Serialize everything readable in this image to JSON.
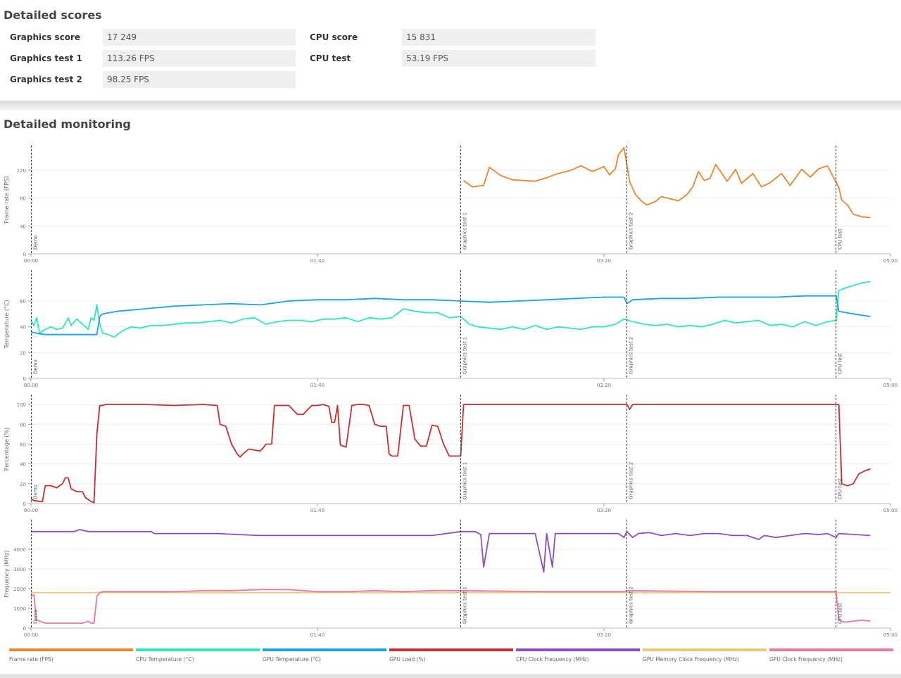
{
  "scores": {
    "title": "Detailed scores",
    "left": [
      {
        "label": "Graphics score",
        "value": "17 249"
      },
      {
        "label": "Graphics test 1",
        "value": "113.26 FPS"
      },
      {
        "label": "Graphics test 2",
        "value": "98.25 FPS"
      }
    ],
    "right": [
      {
        "label": "CPU score",
        "value": "15 831"
      },
      {
        "label": "CPU test",
        "value": "53.19 FPS"
      }
    ]
  },
  "monitoring": {
    "title": "Detailed monitoring"
  },
  "chart_data": [
    {
      "type": "line",
      "ylabel": "Frame rate (FPS)",
      "ylim": [
        0,
        155
      ],
      "yticks": [
        0,
        40,
        80,
        120
      ],
      "xlim": [
        "00:00",
        "05:00"
      ],
      "xticks": [
        "00:00",
        "01:40",
        "03:20",
        "05:00"
      ],
      "grid": true,
      "markers": [
        {
          "time": "00:00",
          "label": "Demo"
        },
        {
          "time": "02:30",
          "label": "Graphics test 1"
        },
        {
          "time": "03:28",
          "label": "Graphics test 2"
        },
        {
          "time": "04:41",
          "label": "CPU test"
        }
      ],
      "series": [
        {
          "name": "Frame rate (FPS)",
          "color": "#e8852e",
          "x": [
            "02:31",
            "02:34",
            "02:38",
            "02:40",
            "02:44",
            "02:48",
            "02:52",
            "02:56",
            "03:00",
            "03:04",
            "03:08",
            "03:12",
            "03:16",
            "03:20",
            "03:22",
            "03:24",
            "03:25",
            "03:27",
            "03:29",
            "03:31",
            "03:33",
            "03:35",
            "03:38",
            "03:40",
            "03:43",
            "03:46",
            "03:49",
            "03:51",
            "03:53",
            "03:55",
            "03:57",
            "03:59",
            "04:01",
            "04:03",
            "04:06",
            "04:08",
            "04:12",
            "04:15",
            "04:18",
            "04:22",
            "04:25",
            "04:29",
            "04:32",
            "04:35",
            "04:38",
            "04:42",
            "04:43",
            "04:45",
            "04:47",
            "04:50",
            "04:53"
          ],
          "values": [
            105,
            96,
            98,
            124,
            112,
            106,
            105,
            104,
            109,
            115,
            119,
            126,
            118,
            125,
            113,
            122,
            142,
            152,
            103,
            85,
            76,
            70,
            75,
            82,
            79,
            76,
            85,
            96,
            118,
            105,
            108,
            128,
            116,
            104,
            121,
            101,
            115,
            96,
            102,
            115,
            98,
            121,
            110,
            122,
            126,
            95,
            77,
            70,
            57,
            53,
            52
          ]
        }
      ]
    },
    {
      "type": "line",
      "ylabel": "Temperature (°C)",
      "ylim": [
        0,
        84
      ],
      "yticks": [
        0,
        20,
        40,
        60
      ],
      "xlim": [
        "00:00",
        "05:00"
      ],
      "xticks": [
        "00:00",
        "01:40",
        "03:20",
        "05:00"
      ],
      "grid": true,
      "markers": [
        {
          "time": "00:00",
          "label": "Demo"
        },
        {
          "time": "02:30",
          "label": "Graphics test 1"
        },
        {
          "time": "03:28",
          "label": "Graphics test 2"
        },
        {
          "time": "04:41",
          "label": "CPU test"
        }
      ],
      "series": [
        {
          "name": "CPU Temperature (°C)",
          "color": "#2ee8b8",
          "x": [
            "00:00",
            "00:01",
            "00:02",
            "00:03",
            "00:05",
            "00:07",
            "00:09",
            "00:11",
            "00:13",
            "00:14",
            "00:16",
            "00:18",
            "00:20",
            "00:21",
            "00:22",
            "00:23",
            "00:24",
            "00:25",
            "00:27",
            "00:29",
            "00:32",
            "00:35",
            "00:38",
            "00:42",
            "00:46",
            "00:50",
            "00:54",
            "00:58",
            "01:02",
            "01:06",
            "01:10",
            "01:14",
            "01:18",
            "01:22",
            "01:26",
            "01:30",
            "01:34",
            "01:38",
            "01:42",
            "01:46",
            "01:50",
            "01:54",
            "01:58",
            "02:02",
            "02:06",
            "02:10",
            "02:14",
            "02:18",
            "02:22",
            "02:26",
            "02:30",
            "02:33",
            "02:36",
            "02:40",
            "02:44",
            "02:48",
            "02:52",
            "02:56",
            "03:00",
            "03:04",
            "03:08",
            "03:12",
            "03:16",
            "03:20",
            "03:24",
            "03:27",
            "03:30",
            "03:34",
            "03:38",
            "03:42",
            "03:46",
            "03:50",
            "03:54",
            "03:58",
            "04:02",
            "04:06",
            "04:10",
            "04:14",
            "04:18",
            "04:22",
            "04:26",
            "04:30",
            "04:34",
            "04:38",
            "04:41",
            "04:42",
            "04:44",
            "04:47",
            "04:50",
            "04:53"
          ],
          "values": [
            45,
            41,
            47,
            35,
            38,
            40,
            38,
            39,
            47,
            41,
            46,
            42,
            38,
            47,
            45,
            57,
            42,
            35,
            34,
            32,
            37,
            40,
            39,
            41,
            41,
            42,
            43,
            43,
            44,
            45,
            43,
            46,
            47,
            42,
            44,
            45,
            45,
            44,
            46,
            46,
            47,
            44,
            47,
            46,
            47,
            54,
            52,
            51,
            51,
            47,
            48,
            42,
            40,
            39,
            38,
            40,
            38,
            41,
            38,
            40,
            39,
            38,
            40,
            40,
            42,
            46,
            44,
            42,
            41,
            42,
            40,
            41,
            40,
            42,
            45,
            43,
            44,
            45,
            41,
            42,
            40,
            44,
            41,
            44,
            45,
            68,
            70,
            72,
            74,
            75
          ]
        },
        {
          "name": "GPU Temperature (°C)",
          "color": "#1ba5e0",
          "x": [
            "00:00",
            "00:02",
            "00:05",
            "00:10",
            "00:15",
            "00:20",
            "00:23",
            "00:24",
            "00:25",
            "00:30",
            "00:40",
            "00:50",
            "01:00",
            "01:10",
            "01:20",
            "01:30",
            "01:40",
            "01:50",
            "02:00",
            "02:10",
            "02:20",
            "02:30",
            "02:40",
            "02:50",
            "03:00",
            "03:10",
            "03:20",
            "03:27",
            "03:28",
            "03:30",
            "03:40",
            "03:50",
            "04:00",
            "04:10",
            "04:20",
            "04:30",
            "04:40",
            "04:41",
            "04:42",
            "04:47",
            "04:53"
          ],
          "values": [
            36,
            35,
            34,
            34,
            34,
            34,
            34,
            48,
            50,
            52,
            54,
            56,
            57,
            58,
            57,
            60,
            61,
            61,
            62,
            61,
            61,
            60,
            59,
            60,
            61,
            62,
            63,
            63,
            58,
            61,
            62,
            62,
            63,
            63,
            63,
            64,
            64,
            64,
            52,
            50,
            48
          ]
        }
      ]
    },
    {
      "type": "line",
      "ylabel": "Percentage (%)",
      "ylim": [
        0,
        110
      ],
      "yticks": [
        0,
        20,
        40,
        60,
        80,
        100
      ],
      "xlim": [
        "00:00",
        "05:00"
      ],
      "xticks": [
        "00:00",
        "01:40",
        "03:20",
        "05:00"
      ],
      "grid": true,
      "markers": [
        {
          "time": "00:00",
          "label": "Demo"
        },
        {
          "time": "02:30",
          "label": "Graphics test 1"
        },
        {
          "time": "03:28",
          "label": "Graphics test 2"
        },
        {
          "time": "04:41",
          "label": "CPU test"
        }
      ],
      "series": [
        {
          "name": "GPU Load (%)",
          "color": "#c43030",
          "x": [
            "00:00",
            "00:01",
            "00:04",
            "00:05",
            "00:07",
            "00:09",
            "00:11",
            "00:12",
            "00:13",
            "00:14",
            "00:16",
            "00:18",
            "00:19",
            "00:21",
            "00:22",
            "00:23",
            "00:24",
            "00:25",
            "00:26",
            "00:30",
            "00:40",
            "00:50",
            "01:00",
            "01:05",
            "01:06",
            "01:08",
            "01:10",
            "01:11",
            "01:12",
            "01:13",
            "01:14",
            "01:16",
            "01:18",
            "01:20",
            "01:21",
            "01:22",
            "01:24",
            "01:25",
            "01:27",
            "01:30",
            "01:33",
            "01:35",
            "01:38",
            "01:40",
            "01:42",
            "01:44",
            "01:45",
            "01:46",
            "01:47",
            "01:48",
            "01:50",
            "01:52",
            "01:54",
            "01:56",
            "01:58",
            "02:00",
            "02:02",
            "02:04",
            "02:05",
            "02:06",
            "02:08",
            "02:10",
            "02:12",
            "02:14",
            "02:16",
            "02:18",
            "02:20",
            "02:22",
            "02:24",
            "02:26",
            "02:28",
            "02:30",
            "02:31",
            "03:00",
            "03:27",
            "03:28",
            "03:29",
            "03:30",
            "04:00",
            "04:41",
            "04:42",
            "04:43",
            "04:45",
            "04:47",
            "04:49",
            "04:51",
            "04:53"
          ],
          "values": [
            5,
            3,
            2,
            18,
            18,
            16,
            20,
            26,
            26,
            15,
            12,
            12,
            6,
            2,
            1,
            70,
            99,
            99,
            100,
            100,
            100,
            99,
            100,
            99,
            80,
            78,
            60,
            55,
            50,
            47,
            50,
            55,
            54,
            53,
            56,
            60,
            60,
            99,
            99,
            99,
            90,
            90,
            99,
            99,
            100,
            98,
            82,
            82,
            99,
            59,
            57,
            99,
            100,
            100,
            99,
            80,
            78,
            78,
            50,
            48,
            48,
            99,
            99,
            65,
            58,
            58,
            79,
            78,
            60,
            48,
            48,
            48,
            100,
            100,
            100,
            100,
            95,
            100,
            100,
            100,
            100,
            20,
            18,
            20,
            30,
            33,
            35
          ]
        }
      ]
    },
    {
      "type": "line",
      "ylabel": "Frequency (MHz)",
      "ylim": [
        0,
        5500
      ],
      "yticks": [
        0,
        1000,
        2000,
        3000,
        4000
      ],
      "xlim": [
        "00:00",
        "05:00"
      ],
      "xticks": [
        "00:00",
        "01:40",
        "03:20",
        "05:00"
      ],
      "grid": true,
      "markers": [
        {
          "time": "00:00",
          "label": "Demo"
        },
        {
          "time": "02:30",
          "label": "Graphics test 1"
        },
        {
          "time": "03:28",
          "label": "Graphics test 2"
        },
        {
          "time": "04:41",
          "label": "CPU test"
        }
      ],
      "series": [
        {
          "name": "CPU Clock Frequency (MHz)",
          "color": "#8d4cc4",
          "x": [
            "00:00",
            "00:15",
            "00:17",
            "00:20",
            "00:22",
            "00:25",
            "00:42",
            "00:43",
            "00:55",
            "01:00",
            "01:05",
            "01:20",
            "01:40",
            "02:00",
            "02:20",
            "02:30",
            "02:35",
            "02:37",
            "02:38",
            "02:40",
            "02:45",
            "02:56",
            "02:59",
            "03:00",
            "03:02",
            "03:03",
            "03:05",
            "03:10",
            "03:15",
            "03:20",
            "03:25",
            "03:27",
            "03:28",
            "03:30",
            "03:32",
            "03:36",
            "03:40",
            "03:45",
            "03:50",
            "03:55",
            "04:00",
            "04:05",
            "04:10",
            "04:14",
            "04:16",
            "04:20",
            "04:25",
            "04:30",
            "04:35",
            "04:38",
            "04:41",
            "04:42",
            "04:53"
          ],
          "values": [
            4900,
            4900,
            5000,
            4900,
            4900,
            4900,
            4900,
            4800,
            4800,
            4800,
            4800,
            4700,
            4700,
            4700,
            4700,
            4900,
            4900,
            4750,
            3100,
            4800,
            4800,
            4800,
            2850,
            4800,
            3100,
            4800,
            4800,
            4800,
            4800,
            4800,
            4800,
            4600,
            4900,
            4600,
            4800,
            4850,
            4700,
            4800,
            4700,
            4800,
            4800,
            4700,
            4700,
            4500,
            4700,
            4600,
            4700,
            4800,
            4750,
            4800,
            4600,
            4800,
            4700
          ]
        },
        {
          "name": "GPU Memory Clock Frequency (MHz)",
          "color": "#e8c87a",
          "x": [
            "00:00",
            "05:00"
          ],
          "values": [
            1800,
            1800
          ]
        },
        {
          "name": "GPU Clock Frequency (MHz)",
          "color": "#e87a9b",
          "x": [
            "00:00",
            "00:01",
            "00:02",
            "00:05",
            "00:10",
            "00:15",
            "00:18",
            "00:20",
            "00:21",
            "00:22",
            "00:23",
            "00:24",
            "00:25",
            "00:30",
            "00:40",
            "00:50",
            "01:00",
            "01:10",
            "01:20",
            "01:30",
            "01:40",
            "01:50",
            "02:00",
            "02:10",
            "02:20",
            "02:30",
            "03:00",
            "03:27",
            "03:28",
            "04:00",
            "04:41",
            "04:42",
            "04:44",
            "04:47",
            "04:50",
            "04:53"
          ],
          "values": [
            1600,
            1700,
            400,
            250,
            250,
            250,
            250,
            350,
            250,
            250,
            1600,
            1800,
            1850,
            1850,
            1850,
            1850,
            1900,
            1900,
            1950,
            1950,
            1850,
            1850,
            1900,
            1850,
            1900,
            1900,
            1850,
            1850,
            1900,
            1850,
            1850,
            400,
            300,
            350,
            400,
            350
          ]
        }
      ]
    }
  ],
  "legend": [
    {
      "label": "Frame rate (FPS)",
      "color": "#e8852e"
    },
    {
      "label": "CPU Temperature (°C)",
      "color": "#2ee8b8"
    },
    {
      "label": "GPU Temperature (°C)",
      "color": "#1ba5e0"
    },
    {
      "label": "GPU Load (%)",
      "color": "#c43030"
    },
    {
      "label": "CPU Clock Frequency (MHz)",
      "color": "#8d4cc4"
    },
    {
      "label": "GPU Memory Clock Frequency (MHz)",
      "color": "#e8c87a"
    },
    {
      "label": "GPU Clock Frequency (MHz)",
      "color": "#e87a9b"
    }
  ]
}
